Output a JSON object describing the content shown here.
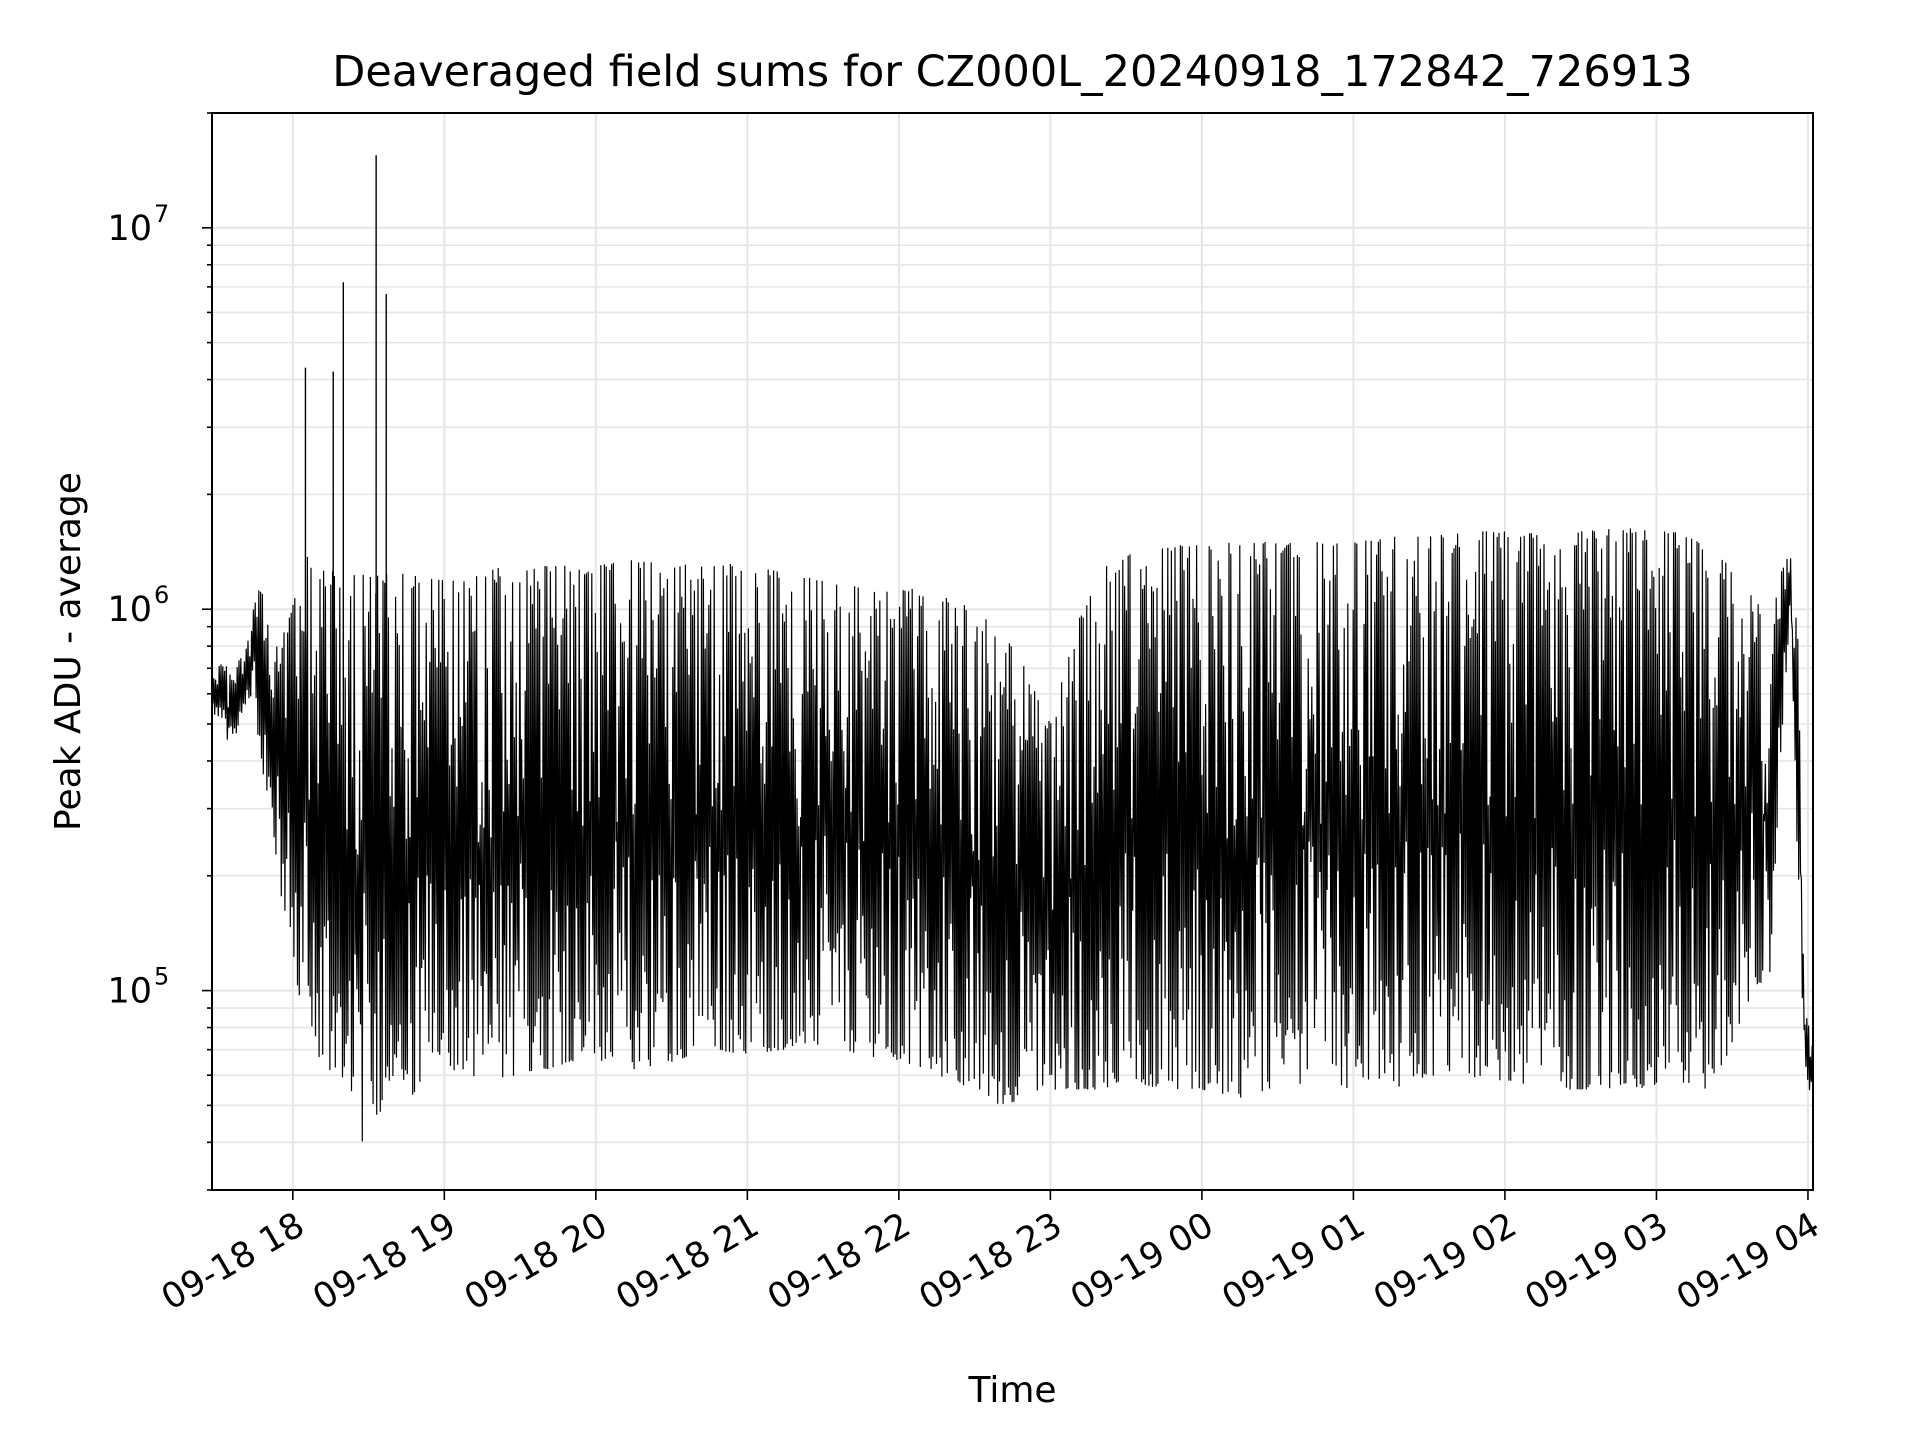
{
  "chart_data": {
    "type": "line",
    "title": "Deaveraged field sums for CZ000L_20240918_172842_726913",
    "xlabel": "Time",
    "ylabel": "Peak ADU - average",
    "yscale": "log",
    "xlim": [
      "2024-09-18T17:28:00",
      "2024-09-19T04:02:00"
    ],
    "ylim": [
      30000,
      20000000
    ],
    "grid": true,
    "legend": "none",
    "line_color": "#000000",
    "x_ticks": [
      {
        "t": "2024-09-18T18:00:00",
        "label": "09-18 18"
      },
      {
        "t": "2024-09-18T19:00:00",
        "label": "09-18 19"
      },
      {
        "t": "2024-09-18T20:00:00",
        "label": "09-18 20"
      },
      {
        "t": "2024-09-18T21:00:00",
        "label": "09-18 21"
      },
      {
        "t": "2024-09-18T22:00:00",
        "label": "09-18 22"
      },
      {
        "t": "2024-09-18T23:00:00",
        "label": "09-18 23"
      },
      {
        "t": "2024-09-19T00:00:00",
        "label": "09-19 00"
      },
      {
        "t": "2024-09-19T01:00:00",
        "label": "09-19 01"
      },
      {
        "t": "2024-09-19T02:00:00",
        "label": "09-19 02"
      },
      {
        "t": "2024-09-19T03:00:00",
        "label": "09-19 03"
      },
      {
        "t": "2024-09-19T04:00:00",
        "label": "09-19 04"
      }
    ],
    "y_ticks": [
      {
        "value": 100000,
        "base": "10",
        "exp": "5"
      },
      {
        "value": 1000000,
        "base": "10",
        "exp": "6"
      },
      {
        "value": 10000000,
        "base": "10",
        "exp": "7"
      }
    ],
    "series": [
      {
        "x": [
          "2024-09-18T17:28:00",
          "2024-09-18T17:32:00",
          "2024-09-18T17:36:00",
          "2024-09-18T17:41:00",
          "2024-09-18T17:44:00",
          "2024-09-18T17:48:00",
          "2024-09-18T17:52:00",
          "2024-09-18T17:55:00",
          "2024-09-18T17:58:00",
          "2024-09-18T18:02:00",
          "2024-09-18T18:05:00",
          "2024-09-18T18:08:00",
          "2024-09-18T18:12:00",
          "2024-09-18T18:15:00",
          "2024-09-18T18:18:00",
          "2024-09-18T18:21:00",
          "2024-09-18T18:23:00",
          "2024-09-18T18:26:00",
          "2024-09-18T18:28:00",
          "2024-09-18T18:32:00",
          "2024-09-18T18:34:00",
          "2024-09-18T18:36:00",
          "2024-09-18T18:40:00",
          "2024-09-18T18:45:00",
          "2024-09-18T18:50:00",
          "2024-09-18T18:55:00",
          "2024-09-18T19:00:00",
          "2024-09-18T19:10:00",
          "2024-09-18T19:20:00",
          "2024-09-18T19:30:00",
          "2024-09-18T19:40:00",
          "2024-09-18T19:50:00",
          "2024-09-18T20:00:00",
          "2024-09-18T20:15:00",
          "2024-09-18T20:30:00",
          "2024-09-18T20:45:00",
          "2024-09-18T21:00:00",
          "2024-09-18T21:15:00",
          "2024-09-18T21:30:00",
          "2024-09-18T21:45:00",
          "2024-09-18T22:00:00",
          "2024-09-18T22:15:00",
          "2024-09-18T22:30:00",
          "2024-09-18T22:40:00",
          "2024-09-18T22:50:00",
          "2024-09-18T23:00:00",
          "2024-09-18T23:10:00",
          "2024-09-18T23:20:00",
          "2024-09-18T23:30:00",
          "2024-09-18T23:45:00",
          "2024-09-19T00:00:00",
          "2024-09-19T00:15:00",
          "2024-09-19T00:30:00",
          "2024-09-19T00:45:00",
          "2024-09-19T01:00:00",
          "2024-09-19T01:15:00",
          "2024-09-19T01:30:00",
          "2024-09-19T01:45:00",
          "2024-09-19T02:00:00",
          "2024-09-19T02:15:00",
          "2024-09-19T02:30:00",
          "2024-09-19T02:45:00",
          "2024-09-19T03:00:00",
          "2024-09-19T03:10:00",
          "2024-09-19T03:20:00",
          "2024-09-19T03:30:00",
          "2024-09-19T03:38:00",
          "2024-09-19T03:45:00",
          "2024-09-19T03:50:00",
          "2024-09-19T03:53:00",
          "2024-09-19T03:56:00",
          "2024-09-19T03:59:00",
          "2024-09-19T04:02:00"
        ],
        "low": [
          550000,
          470000,
          420000,
          560000,
          600000,
          380000,
          260000,
          180000,
          150000,
          95000,
          100000,
          70000,
          65000,
          60000,
          58000,
          60000,
          55000,
          48000,
          38000,
          50000,
          45000,
          55000,
          60000,
          50000,
          55000,
          58000,
          62000,
          60000,
          58000,
          60000,
          62000,
          65000,
          65000,
          62000,
          65000,
          70000,
          68000,
          70000,
          72000,
          68000,
          65000,
          60000,
          55000,
          50000,
          52000,
          55000,
          55000,
          55000,
          58000,
          55000,
          55000,
          52000,
          55000,
          58000,
          55000,
          55000,
          60000,
          58000,
          58000,
          55000,
          55000,
          55000,
          55000,
          55000,
          55000,
          70000,
          100000,
          110000,
          500000,
          1000000,
          200000,
          55000,
          50000
        ],
        "high": [
          700000,
          720000,
          700000,
          780000,
          1000000,
          1200000,
          750000,
          850000,
          900000,
          1300000,
          1400000,
          1300000,
          1350000,
          1250000,
          1300000,
          1350000,
          1200000,
          1300000,
          1250000,
          1200000,
          1250000,
          1250000,
          1200000,
          1300000,
          1250000,
          1200000,
          1200000,
          1250000,
          1300000,
          1250000,
          1300000,
          1300000,
          1300000,
          1350000,
          1300000,
          1350000,
          1300000,
          1250000,
          1200000,
          1150000,
          1150000,
          1100000,
          1000000,
          900000,
          700000,
          500000,
          900000,
          1300000,
          1400000,
          1450000,
          1500000,
          1500000,
          1500000,
          1500000,
          1500000,
          1550000,
          1550000,
          1600000,
          1600000,
          1650000,
          1600000,
          1650000,
          1600000,
          1600000,
          1450000,
          1300000,
          1100000,
          900000,
          1300000,
          1400000,
          900000,
          90000,
          70000
        ],
        "spikes": [
          {
            "t": "2024-09-18T18:05:00",
            "value": 4300000
          },
          {
            "t": "2024-09-18T18:16:00",
            "value": 4200000
          },
          {
            "t": "2024-09-18T18:20:00",
            "value": 7200000
          },
          {
            "t": "2024-09-18T18:33:00",
            "value": 15500000
          },
          {
            "t": "2024-09-18T18:37:00",
            "value": 6700000
          }
        ]
      }
    ]
  }
}
